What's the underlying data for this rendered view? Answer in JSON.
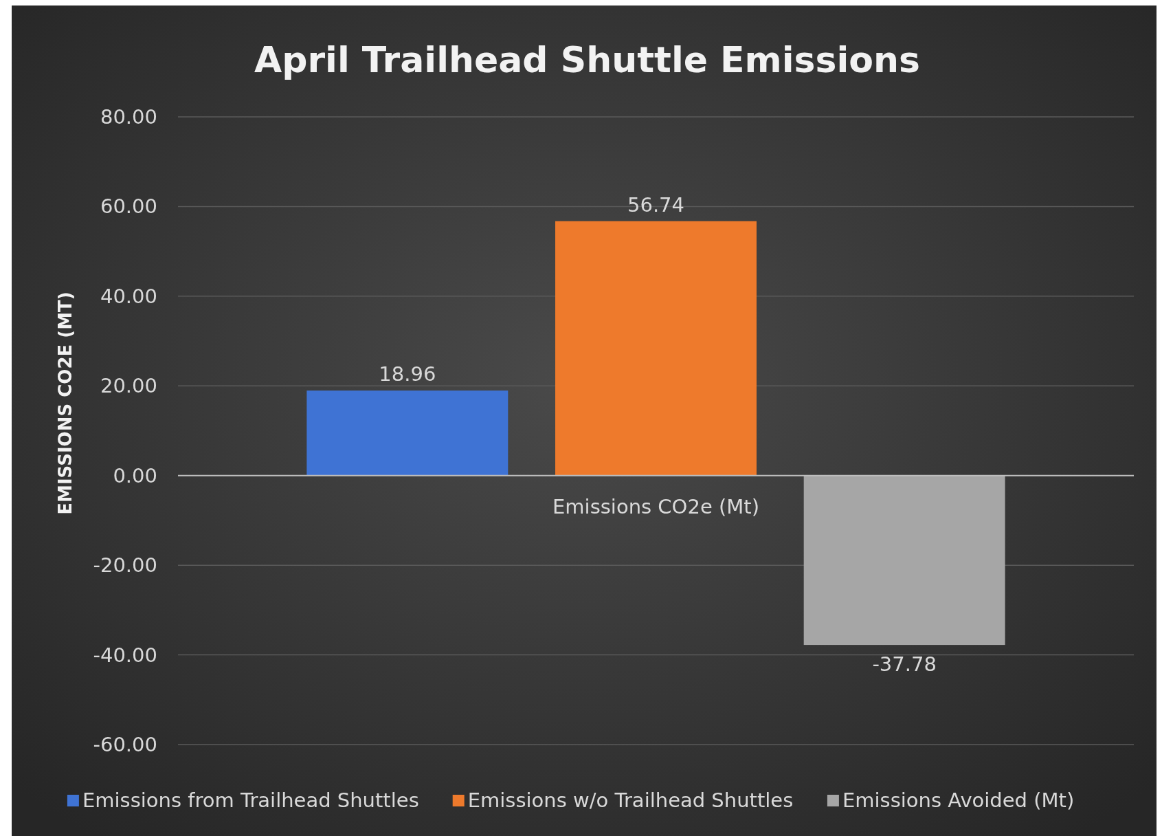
{
  "chart_data": {
    "type": "bar",
    "title": "April Trailhead Shuttle Emissions",
    "ylabel": "EMISSIONS CO2E (MT)",
    "categories": [
      "Emissions CO2e (Mt)"
    ],
    "series": [
      {
        "name": "Emissions from Trailhead Shuttles",
        "color": "#3f73d4",
        "values": [
          18.96
        ]
      },
      {
        "name": "Emissions w/o Trailhead Shuttles",
        "color": "#ee7a2c",
        "values": [
          56.74
        ]
      },
      {
        "name": "Emissions Avoided (Mt)",
        "color": "#a6a6a6",
        "values": [
          -37.78
        ]
      }
    ],
    "ylim": [
      -60,
      80
    ],
    "yticks": [
      {
        "value": -60,
        "label": "-60.00"
      },
      {
        "value": -40,
        "label": "-40.00"
      },
      {
        "value": -20,
        "label": "-20.00"
      },
      {
        "value": 0,
        "label": "0.00"
      },
      {
        "value": 20,
        "label": "20.00"
      },
      {
        "value": 40,
        "label": "40.00"
      },
      {
        "value": 60,
        "label": "60.00"
      },
      {
        "value": 80,
        "label": "80.00"
      }
    ],
    "grid": "y",
    "legend": "bottom",
    "data_labels": true
  }
}
